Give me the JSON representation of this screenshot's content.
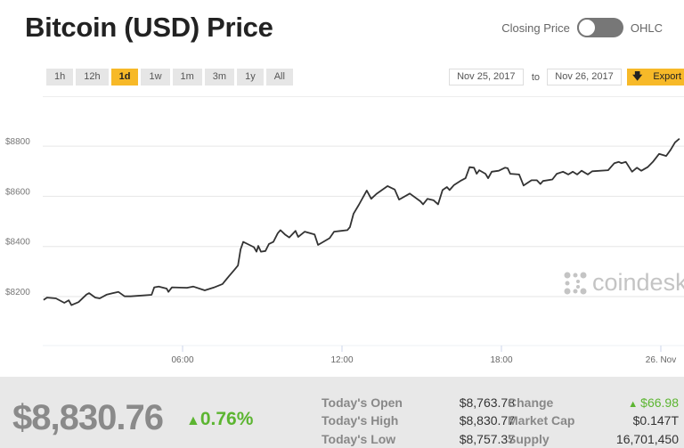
{
  "header": {
    "title": "Bitcoin (USD) Price",
    "toggle_left": "Closing Price",
    "toggle_right": "OHLC"
  },
  "ranges": [
    "1h",
    "12h",
    "1d",
    "1w",
    "1m",
    "3m",
    "1y",
    "All"
  ],
  "active_range": "1d",
  "dates": {
    "from": "Nov 25, 2017",
    "to_label": "to",
    "to": "Nov 26, 2017",
    "export": "Export"
  },
  "logo": "coindesk",
  "colors": {
    "accent": "#f7b928",
    "up": "#5cb531",
    "line": "#333333"
  },
  "summary": {
    "price": "$8,830.76",
    "change_pct": "0.76%",
    "open_label": "Today's Open",
    "open": "$8,763.78",
    "high_label": "Today's High",
    "high": "$8,830.77",
    "low_label": "Today's Low",
    "low": "$8,757.37",
    "change_label": "Change",
    "change": "$66.98",
    "mcap_label": "Market Cap",
    "mcap": "$0.147T",
    "supply_label": "Supply",
    "supply": "16,701,450"
  },
  "chart_data": {
    "type": "line",
    "grid": true,
    "ylim": [
      8150,
      8850
    ],
    "yticks": [
      "$8200",
      "$8400",
      "$8600",
      "$8800"
    ],
    "ytick_values": [
      8200,
      8400,
      8600,
      8800
    ],
    "xticks": [
      "06:00",
      "12:00",
      "18:00",
      "26. Nov"
    ],
    "xtick_values": [
      "2017-11-25 06:00",
      "2017-11-25 12:00",
      "2017-11-25 18:00",
      "2017-11-26 00:00"
    ],
    "x": [
      "2017-11-25 00:46",
      "2017-11-25 00:54",
      "2017-11-25 01:14",
      "2017-11-25 01:33",
      "2017-11-25 01:43",
      "2017-11-25 01:49",
      "2017-11-25 02:05",
      "2017-11-25 02:23",
      "2017-11-25 02:29",
      "2017-11-25 02:43",
      "2017-11-25 02:53",
      "2017-11-25 03:09",
      "2017-11-25 03:35",
      "2017-11-25 03:49",
      "2017-11-25 04:03",
      "2017-11-25 04:50",
      "2017-11-25 04:56",
      "2017-11-25 05:06",
      "2017-11-25 05:24",
      "2017-11-25 05:28",
      "2017-11-25 05:36",
      "2017-11-25 06:10",
      "2017-11-25 06:24",
      "2017-11-25 06:50",
      "2017-11-25 07:10",
      "2017-11-25 07:30",
      "2017-11-25 07:45",
      "2017-11-25 07:57",
      "2017-11-25 08:05",
      "2017-11-25 08:11",
      "2017-11-25 08:17",
      "2017-11-25 08:31",
      "2017-11-25 08:41",
      "2017-11-25 08:47",
      "2017-11-25 08:51",
      "2017-11-25 08:57",
      "2017-11-25 09:07",
      "2017-11-25 09:15",
      "2017-11-25 09:25",
      "2017-11-25 09:35",
      "2017-11-25 09:41",
      "2017-11-25 09:51",
      "2017-11-25 10:01",
      "2017-11-25 10:15",
      "2017-11-25 10:21",
      "2017-11-25 10:36",
      "2017-11-25 10:58",
      "2017-11-25 11:06",
      "2017-11-25 11:32",
      "2017-11-25 11:42",
      "2017-11-25 12:12",
      "2017-11-25 12:18",
      "2017-11-25 12:26",
      "2017-11-25 12:38",
      "2017-11-25 12:56",
      "2017-11-25 13:06",
      "2017-11-25 13:18",
      "2017-11-25 13:43",
      "2017-11-25 13:59",
      "2017-11-25 14:09",
      "2017-11-25 14:33",
      "2017-11-25 14:57",
      "2017-11-25 15:03",
      "2017-11-25 15:13",
      "2017-11-25 15:27",
      "2017-11-25 15:37",
      "2017-11-25 15:47",
      "2017-11-25 15:57",
      "2017-11-25 16:03",
      "2017-11-25 16:13",
      "2017-11-25 16:27",
      "2017-11-25 16:39",
      "2017-11-25 16:48",
      "2017-11-25 16:58",
      "2017-11-25 17:04",
      "2017-11-25 17:10",
      "2017-11-25 17:24",
      "2017-11-25 17:30",
      "2017-11-25 17:38",
      "2017-11-25 17:54",
      "2017-11-25 18:08",
      "2017-11-25 18:14",
      "2017-11-25 18:20",
      "2017-11-25 18:40",
      "2017-11-25 18:50",
      "2017-11-25 19:08",
      "2017-11-25 19:20",
      "2017-11-25 19:28",
      "2017-11-25 19:34",
      "2017-11-25 19:55",
      "2017-11-25 20:05",
      "2017-11-25 20:19",
      "2017-11-25 20:31",
      "2017-11-25 20:41",
      "2017-11-25 20:51",
      "2017-11-25 21:01",
      "2017-11-25 21:15",
      "2017-11-25 21:25",
      "2017-11-25 22:01",
      "2017-11-25 22:15",
      "2017-11-25 22:25",
      "2017-11-25 22:31",
      "2017-11-25 22:41",
      "2017-11-25 22:55",
      "2017-11-25 23:06",
      "2017-11-25 23:16",
      "2017-11-25 23:30",
      "2017-11-25 23:42",
      "2017-11-25 23:56",
      "2017-11-26 00:12",
      "2017-11-26 00:22",
      "2017-11-26 00:32",
      "2017-11-26 00:42"
    ],
    "y": [
      8187,
      8196,
      8193,
      8175,
      8185,
      8166,
      8178,
      8208,
      8214,
      8196,
      8193,
      8208,
      8219,
      8201,
      8201,
      8207,
      8237,
      8240,
      8232,
      8219,
      8237,
      8235,
      8240,
      8225,
      8236,
      8250,
      8282,
      8307,
      8324,
      8388,
      8418,
      8406,
      8397,
      8379,
      8402,
      8379,
      8382,
      8410,
      8418,
      8453,
      8465,
      8448,
      8436,
      8462,
      8438,
      8459,
      8448,
      8406,
      8433,
      8459,
      8465,
      8477,
      8530,
      8566,
      8623,
      8590,
      8610,
      8641,
      8627,
      8587,
      8611,
      8580,
      8568,
      8590,
      8584,
      8568,
      8625,
      8637,
      8625,
      8645,
      8661,
      8672,
      8716,
      8714,
      8690,
      8704,
      8690,
      8672,
      8698,
      8702,
      8714,
      8712,
      8690,
      8687,
      8643,
      8664,
      8664,
      8649,
      8661,
      8667,
      8690,
      8698,
      8687,
      8698,
      8687,
      8702,
      8687,
      8700,
      8704,
      8732,
      8737,
      8732,
      8737,
      8698,
      8714,
      8702,
      8716,
      8737,
      8769,
      8761,
      8785,
      8815,
      8830
    ]
  }
}
